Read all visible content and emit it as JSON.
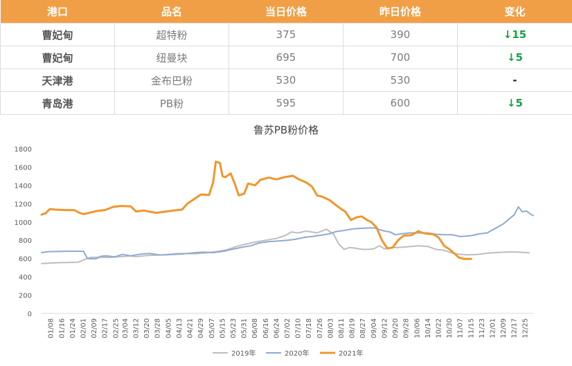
{
  "table": {
    "headers": [
      "港口",
      "品名",
      "当日价格",
      "昨日价格",
      "变化"
    ],
    "rows": [
      {
        "port": "曹妃甸",
        "product": "超特粉",
        "today": "375",
        "yesterday": "390",
        "change": "↓15",
        "dir": "down"
      },
      {
        "port": "曹妃甸",
        "product": "纽曼块",
        "today": "695",
        "yesterday": "700",
        "change": "↓5",
        "dir": "down"
      },
      {
        "port": "天津港",
        "product": "金布巴粉",
        "today": "530",
        "yesterday": "530",
        "change": "-",
        "dir": "flat"
      },
      {
        "port": "青岛港",
        "product": "PB粉",
        "today": "595",
        "yesterday": "600",
        "change": "↓5",
        "dir": "down"
      }
    ]
  },
  "colors": {
    "header_bg": "#f19f46",
    "down": "#17a046",
    "s2019": "#bdbdbd",
    "s2020": "#8eaacf",
    "s2021": "#f0962c"
  },
  "chart_data": {
    "type": "line",
    "title": "鲁苏PB粉价格",
    "ylim": [
      0,
      1800
    ],
    "yticks": [
      0,
      200,
      400,
      600,
      800,
      1000,
      1200,
      1400,
      1600,
      1800
    ],
    "xticks": [
      "01/08",
      "01/16",
      "01/24",
      "02/01",
      "02/09",
      "02/17",
      "02/25",
      "03/04",
      "03/12",
      "03/20",
      "03/28",
      "04/05",
      "04/13",
      "04/21",
      "04/29",
      "05/07",
      "05/15",
      "05/23",
      "05/31",
      "06/08",
      "06/16",
      "06/24",
      "07/02",
      "07/10",
      "07/18",
      "07/26",
      "08/03",
      "08/11",
      "08/19",
      "08/27",
      "09/04",
      "09/12",
      "09/20",
      "09/28",
      "10/06",
      "10/14",
      "10/22",
      "10/30",
      "11/07",
      "11/15",
      "11/23",
      "12/01",
      "12/09",
      "12/17",
      "12/25"
    ],
    "x_start": "01/01",
    "x_end": "12/31",
    "series": [
      {
        "name": "2019年",
        "color": "#bdbdbd",
        "width": 2,
        "points": [
          [
            "01/01",
            545
          ],
          [
            "01/14",
            555
          ],
          [
            "01/28",
            560
          ],
          [
            "02/02",
            590
          ],
          [
            "02/06",
            612
          ],
          [
            "02/12",
            615
          ],
          [
            "02/20",
            612
          ],
          [
            "02/28",
            620
          ],
          [
            "03/08",
            628
          ],
          [
            "03/12",
            620
          ],
          [
            "03/20",
            632
          ],
          [
            "04/01",
            640
          ],
          [
            "04/12",
            655
          ],
          [
            "04/25",
            652
          ],
          [
            "05/03",
            662
          ],
          [
            "05/10",
            675
          ],
          [
            "05/18",
            695
          ],
          [
            "05/26",
            735
          ],
          [
            "06/02",
            760
          ],
          [
            "06/08",
            780
          ],
          [
            "06/16",
            800
          ],
          [
            "06/24",
            820
          ],
          [
            "07/01",
            855
          ],
          [
            "07/05",
            890
          ],
          [
            "07/10",
            880
          ],
          [
            "07/16",
            900
          ],
          [
            "07/24",
            880
          ],
          [
            "07/31",
            920
          ],
          [
            "08/05",
            870
          ],
          [
            "08/09",
            760
          ],
          [
            "08/13",
            700
          ],
          [
            "08/17",
            720
          ],
          [
            "08/21",
            715
          ],
          [
            "08/26",
            700
          ],
          [
            "08/31",
            700
          ],
          [
            "09/04",
            705
          ],
          [
            "09/08",
            740
          ],
          [
            "09/12",
            705
          ],
          [
            "09/16",
            720
          ],
          [
            "09/22",
            720
          ],
          [
            "09/30",
            730
          ],
          [
            "10/07",
            740
          ],
          [
            "10/14",
            732
          ],
          [
            "10/20",
            700
          ],
          [
            "10/26",
            690
          ],
          [
            "11/01",
            660
          ],
          [
            "11/05",
            650
          ],
          [
            "11/12",
            640
          ],
          [
            "11/20",
            645
          ],
          [
            "11/28",
            660
          ],
          [
            "12/06",
            668
          ],
          [
            "12/14",
            672
          ],
          [
            "12/20",
            670
          ],
          [
            "12/28",
            662
          ]
        ]
      },
      {
        "name": "2020年",
        "color": "#8eaacf",
        "width": 2,
        "points": [
          [
            "01/01",
            665
          ],
          [
            "01/06",
            675
          ],
          [
            "01/14",
            678
          ],
          [
            "01/21",
            680
          ],
          [
            "01/28",
            680
          ],
          [
            "02/01",
            680
          ],
          [
            "02/04",
            600
          ],
          [
            "02/10",
            595
          ],
          [
            "02/14",
            625
          ],
          [
            "02/18",
            630
          ],
          [
            "02/24",
            618
          ],
          [
            "03/02",
            645
          ],
          [
            "03/08",
            630
          ],
          [
            "03/16",
            650
          ],
          [
            "03/22",
            655
          ],
          [
            "03/30",
            638
          ],
          [
            "04/08",
            645
          ],
          [
            "04/15",
            650
          ],
          [
            "04/25",
            665
          ],
          [
            "05/01",
            670
          ],
          [
            "05/08",
            665
          ],
          [
            "05/16",
            680
          ],
          [
            "05/22",
            700
          ],
          [
            "05/30",
            725
          ],
          [
            "06/05",
            740
          ],
          [
            "06/11",
            770
          ],
          [
            "06/18",
            785
          ],
          [
            "06/24",
            790
          ],
          [
            "07/02",
            800
          ],
          [
            "07/08",
            810
          ],
          [
            "07/14",
            830
          ],
          [
            "07/20",
            840
          ],
          [
            "07/27",
            855
          ],
          [
            "08/02",
            870
          ],
          [
            "08/07",
            895
          ],
          [
            "08/14",
            910
          ],
          [
            "08/20",
            925
          ],
          [
            "08/26",
            930
          ],
          [
            "09/01",
            935
          ],
          [
            "09/04",
            935
          ],
          [
            "09/12",
            900
          ],
          [
            "09/16",
            890
          ],
          [
            "09/20",
            860
          ],
          [
            "09/24",
            870
          ],
          [
            "10/01",
            880
          ],
          [
            "10/07",
            880
          ],
          [
            "10/14",
            880
          ],
          [
            "10/20",
            865
          ],
          [
            "10/26",
            860
          ],
          [
            "11/01",
            860
          ],
          [
            "11/07",
            840
          ],
          [
            "11/15",
            850
          ],
          [
            "11/21",
            870
          ],
          [
            "11/27",
            880
          ],
          [
            "12/03",
            930
          ],
          [
            "12/09",
            980
          ],
          [
            "12/13",
            1030
          ],
          [
            "12/17",
            1080
          ],
          [
            "12/20",
            1165
          ],
          [
            "12/23",
            1110
          ],
          [
            "12/26",
            1120
          ],
          [
            "12/29",
            1085
          ],
          [
            "12/31",
            1070
          ]
        ]
      },
      {
        "name": "2021年",
        "color": "#f0962c",
        "width": 3,
        "points": [
          [
            "01/01",
            1080
          ],
          [
            "01/04",
            1095
          ],
          [
            "01/07",
            1140
          ],
          [
            "01/11",
            1135
          ],
          [
            "01/18",
            1130
          ],
          [
            "01/25",
            1130
          ],
          [
            "01/29",
            1100
          ],
          [
            "02/01",
            1085
          ],
          [
            "02/04",
            1095
          ],
          [
            "02/11",
            1120
          ],
          [
            "02/17",
            1130
          ],
          [
            "02/23",
            1165
          ],
          [
            "03/01",
            1175
          ],
          [
            "03/08",
            1170
          ],
          [
            "03/12",
            1115
          ],
          [
            "03/18",
            1125
          ],
          [
            "03/22",
            1112
          ],
          [
            "03/27",
            1100
          ],
          [
            "04/02",
            1112
          ],
          [
            "04/09",
            1125
          ],
          [
            "04/15",
            1135
          ],
          [
            "04/19",
            1200
          ],
          [
            "04/25",
            1260
          ],
          [
            "04/29",
            1300
          ],
          [
            "05/05",
            1295
          ],
          [
            "05/08",
            1430
          ],
          [
            "05/10",
            1660
          ],
          [
            "05/13",
            1645
          ],
          [
            "05/15",
            1500
          ],
          [
            "05/17",
            1490
          ],
          [
            "05/21",
            1530
          ],
          [
            "05/24",
            1420
          ],
          [
            "05/27",
            1290
          ],
          [
            "05/31",
            1310
          ],
          [
            "06/03",
            1420
          ],
          [
            "06/08",
            1400
          ],
          [
            "06/12",
            1460
          ],
          [
            "06/18",
            1485
          ],
          [
            "06/24",
            1465
          ],
          [
            "06/30",
            1490
          ],
          [
            "07/06",
            1505
          ],
          [
            "07/10",
            1470
          ],
          [
            "07/16",
            1430
          ],
          [
            "07/20",
            1390
          ],
          [
            "07/24",
            1290
          ],
          [
            "07/28",
            1275
          ],
          [
            "08/02",
            1240
          ],
          [
            "08/06",
            1195
          ],
          [
            "08/10",
            1150
          ],
          [
            "08/14",
            1110
          ],
          [
            "08/18",
            1020
          ],
          [
            "08/22",
            1050
          ],
          [
            "08/26",
            1060
          ],
          [
            "08/30",
            1020
          ],
          [
            "09/02",
            1000
          ],
          [
            "09/06",
            940
          ],
          [
            "09/10",
            800
          ],
          [
            "09/14",
            710
          ],
          [
            "09/18",
            720
          ],
          [
            "09/22",
            800
          ],
          [
            "09/26",
            850
          ],
          [
            "10/02",
            855
          ],
          [
            "10/07",
            900
          ],
          [
            "10/10",
            880
          ],
          [
            "10/14",
            870
          ],
          [
            "10/18",
            865
          ],
          [
            "10/22",
            830
          ],
          [
            "10/26",
            740
          ],
          [
            "10/30",
            700
          ],
          [
            "11/03",
            650
          ],
          [
            "11/06",
            610
          ],
          [
            "11/10",
            595
          ],
          [
            "11/15",
            595
          ]
        ]
      }
    ]
  }
}
